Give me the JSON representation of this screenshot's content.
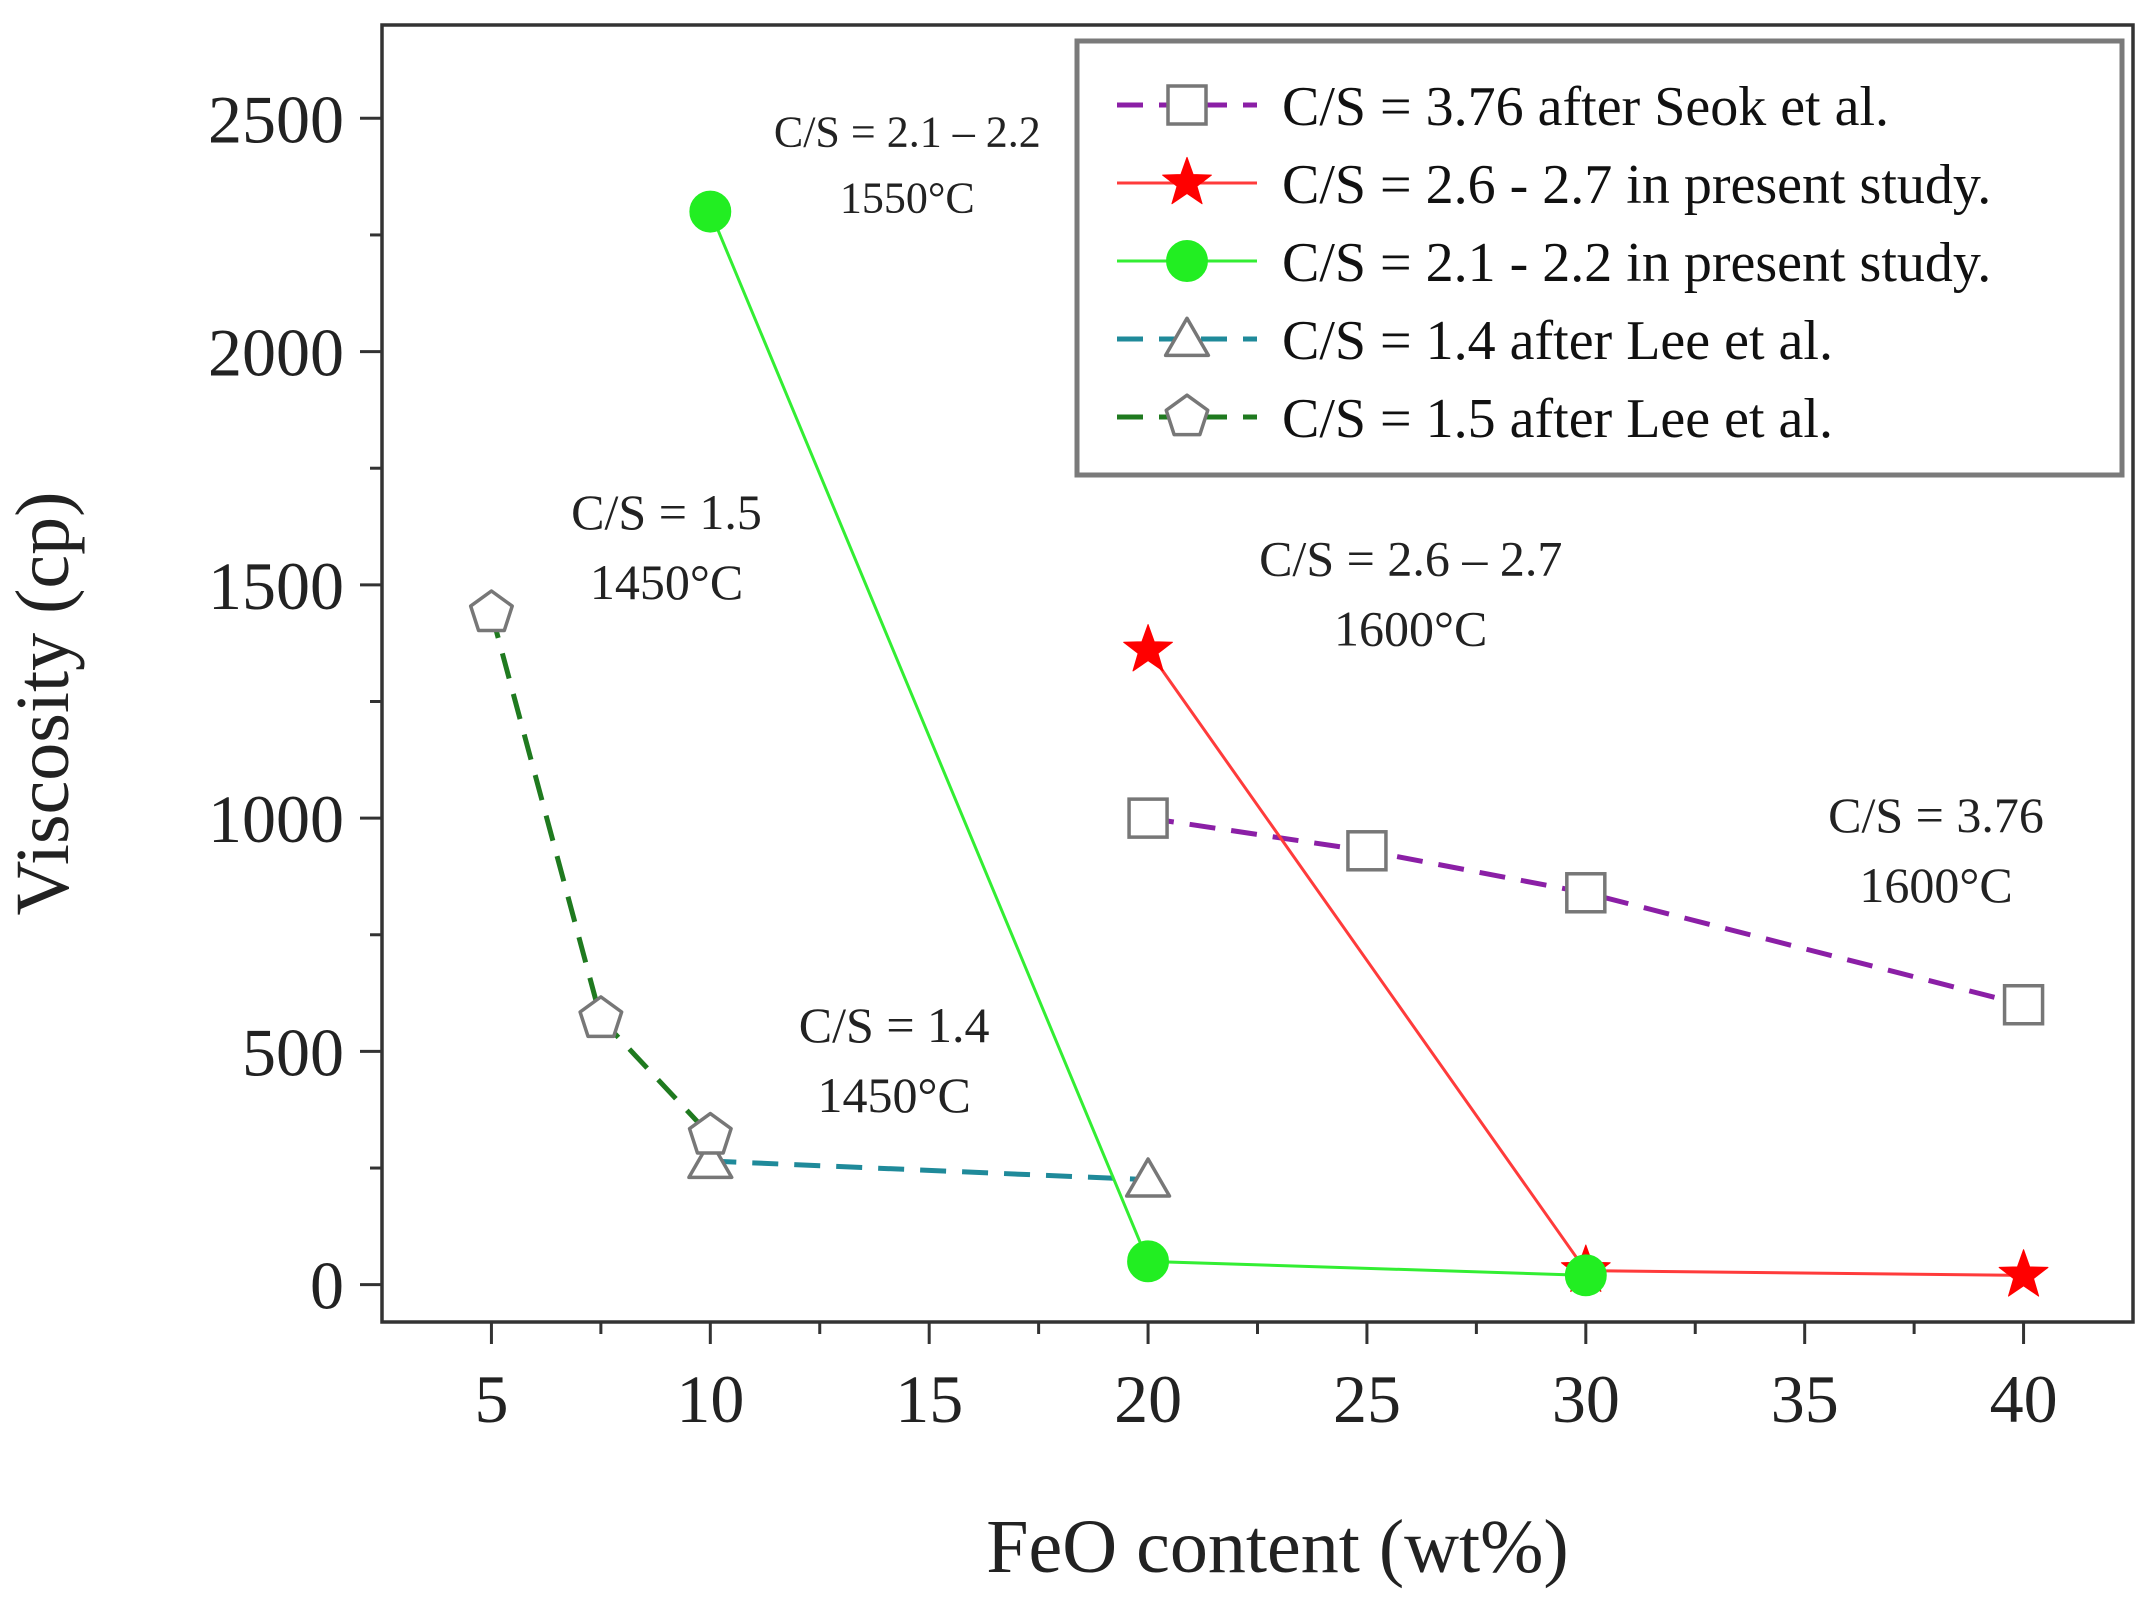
{
  "chart_data": {
    "type": "line",
    "title": "",
    "xlabel": "FeO content (wt%)",
    "ylabel": "Viscosity (cp)",
    "xlim": [
      2.5,
      42.5
    ],
    "ylim": [
      -80,
      2700
    ],
    "xticks": [
      5,
      10,
      15,
      20,
      25,
      30,
      35,
      40
    ],
    "yticks": [
      0,
      500,
      1000,
      1500,
      2000,
      2500
    ],
    "legend_position": "top-right",
    "series": [
      {
        "name": "C/S = 3.76 after Seok et al.",
        "marker": "square",
        "filled": false,
        "dash": true,
        "line_color": "#8b1fa6",
        "marker_color": "#777777",
        "x": [
          20,
          25,
          30,
          40
        ],
        "y": [
          1000,
          930,
          840,
          600
        ]
      },
      {
        "name": "C/S = 2.6 - 2.7 in present study.",
        "marker": "star",
        "filled": true,
        "dash": false,
        "line_color": "#ff3b3b",
        "marker_color": "#ff0000",
        "x": [
          20,
          30,
          40
        ],
        "y": [
          1360,
          30,
          20
        ]
      },
      {
        "name": "C/S = 2.1 - 2.2 in present study.",
        "marker": "circle",
        "filled": true,
        "dash": false,
        "line_color": "#33ee33",
        "marker_color": "#22ee22",
        "x": [
          10,
          20,
          30
        ],
        "y": [
          2300,
          50,
          20
        ]
      },
      {
        "name": "C/S = 1.4 after Lee et al.",
        "marker": "triangle",
        "filled": false,
        "dash": true,
        "line_color": "#1f8a9a",
        "marker_color": "#777777",
        "x": [
          10,
          20
        ],
        "y": [
          265,
          225
        ]
      },
      {
        "name": "C/S = 1.5 after Lee et al.",
        "marker": "pentagon",
        "filled": false,
        "dash": true,
        "line_color": "#1f7a1f",
        "marker_color": "#777777",
        "x": [
          5,
          7.5,
          10
        ],
        "y": [
          1440,
          570,
          320
        ]
      }
    ],
    "annotations": [
      {
        "lines": [
          "C/S = 2.1 – 2.2",
          "1550°C"
        ],
        "x": 14.5,
        "y": 2440,
        "size": "small"
      },
      {
        "lines": [
          "C/S = 1.5",
          "1450°C"
        ],
        "x": 9.0,
        "y": 1620,
        "size": "normal"
      },
      {
        "lines": [
          "C/S = 2.6 – 2.7",
          "1600°C"
        ],
        "x": 26.0,
        "y": 1520,
        "size": "normal"
      },
      {
        "lines": [
          "C/S = 3.76",
          "1600°C"
        ],
        "x": 38.0,
        "y": 970,
        "size": "normal"
      },
      {
        "lines": [
          "C/S = 1.4",
          "1450°C"
        ],
        "x": 14.2,
        "y": 520,
        "size": "normal"
      }
    ]
  }
}
